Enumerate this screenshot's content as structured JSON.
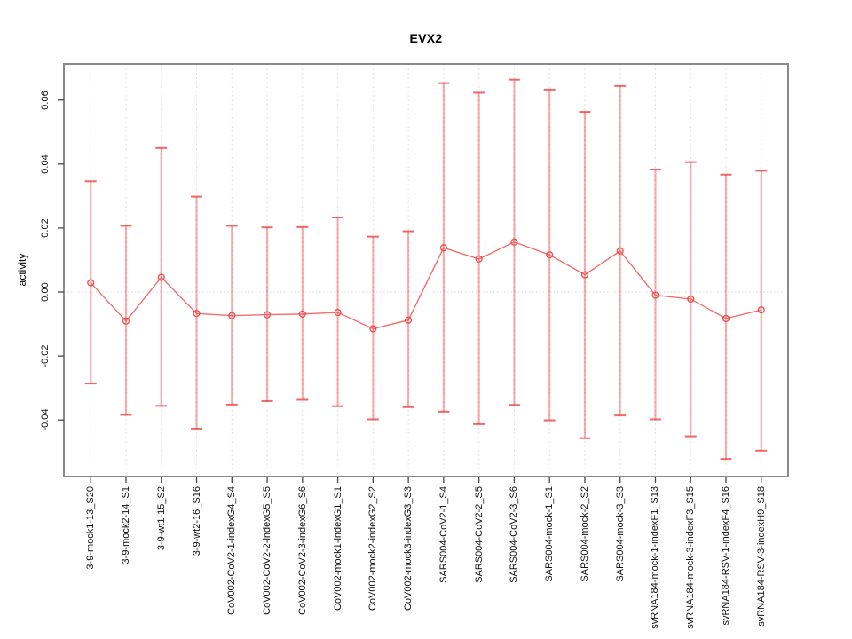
{
  "chart_data": {
    "type": "line",
    "subtype": "points-with-error-bars",
    "title": "EVX2",
    "ylabel": "activity",
    "xlabel": "",
    "legend": "none",
    "grid": "vertical-dashed-per-category-plus-dotted-zero-line",
    "point_style": "open-circle",
    "categories": [
      "3-9-mock1-13_S20",
      "3-9-mock2-14_S1",
      "3-9-wt1-15_S2",
      "3-9-wt2-16_S16",
      "CoV002-CoV2-1-indexG4_S4",
      "CoV002-CoV2-2-indexG5_S5",
      "CoV002-CoV2-3-indexG6_S6",
      "CoV002-mock1-indexG1_S1",
      "CoV002-mock2-indexG2_S2",
      "CoV002-mock3-indexG3_S3",
      "SARS004-CoV2-1_S4",
      "SARS004-CoV2-2_S5",
      "SARS004-CoV2-3_S6",
      "SARS004-mock-1_S1",
      "SARS004-mock-2_S2",
      "SARS004-mock-3_S3",
      "svRNA184-mock-1-indexF1_S13",
      "svRNA184-mock-3-indexF3_S15",
      "svRNA184-RSV-1-indexF4_S16",
      "svRNA184-RSV-3-indexH9_S18"
    ],
    "series": [
      {
        "name": "activity",
        "values": [
          0.0029,
          -0.0091,
          0.0046,
          -0.0067,
          -0.0074,
          -0.0071,
          -0.0069,
          -0.0064,
          -0.0115,
          -0.0088,
          0.0138,
          0.0103,
          0.0156,
          0.0116,
          0.0054,
          0.0128,
          -0.001,
          -0.0022,
          -0.0083,
          -0.0056
        ],
        "upper": [
          0.0346,
          0.0207,
          0.045,
          0.0298,
          0.0207,
          0.0202,
          0.0203,
          0.0233,
          0.0173,
          0.019,
          0.0653,
          0.0623,
          0.0664,
          0.0633,
          0.0563,
          0.0644,
          0.0383,
          0.0406,
          0.0367,
          0.0379
        ],
        "lower": [
          -0.0286,
          -0.0384,
          -0.0356,
          -0.0427,
          -0.0352,
          -0.0341,
          -0.0337,
          -0.0357,
          -0.0398,
          -0.036,
          -0.0374,
          -0.0413,
          -0.0353,
          -0.0401,
          -0.0457,
          -0.0386,
          -0.0398,
          -0.0451,
          -0.0522,
          -0.0496
        ]
      }
    ],
    "yticks": [
      -0.04,
      -0.02,
      0.0,
      0.02,
      0.04,
      0.06
    ],
    "ytick_labels": [
      "-0.04",
      "-0.02",
      "0.00",
      "0.02",
      "0.04",
      "0.06"
    ],
    "ylim": [
      -0.0577,
      0.0713
    ],
    "colors": {
      "series": "#ee4040",
      "grid": "#e1e1e1",
      "zero_line": "#d6d6d6",
      "box": "#8a8a8a",
      "tick": "#474747",
      "text": "#000000"
    }
  }
}
